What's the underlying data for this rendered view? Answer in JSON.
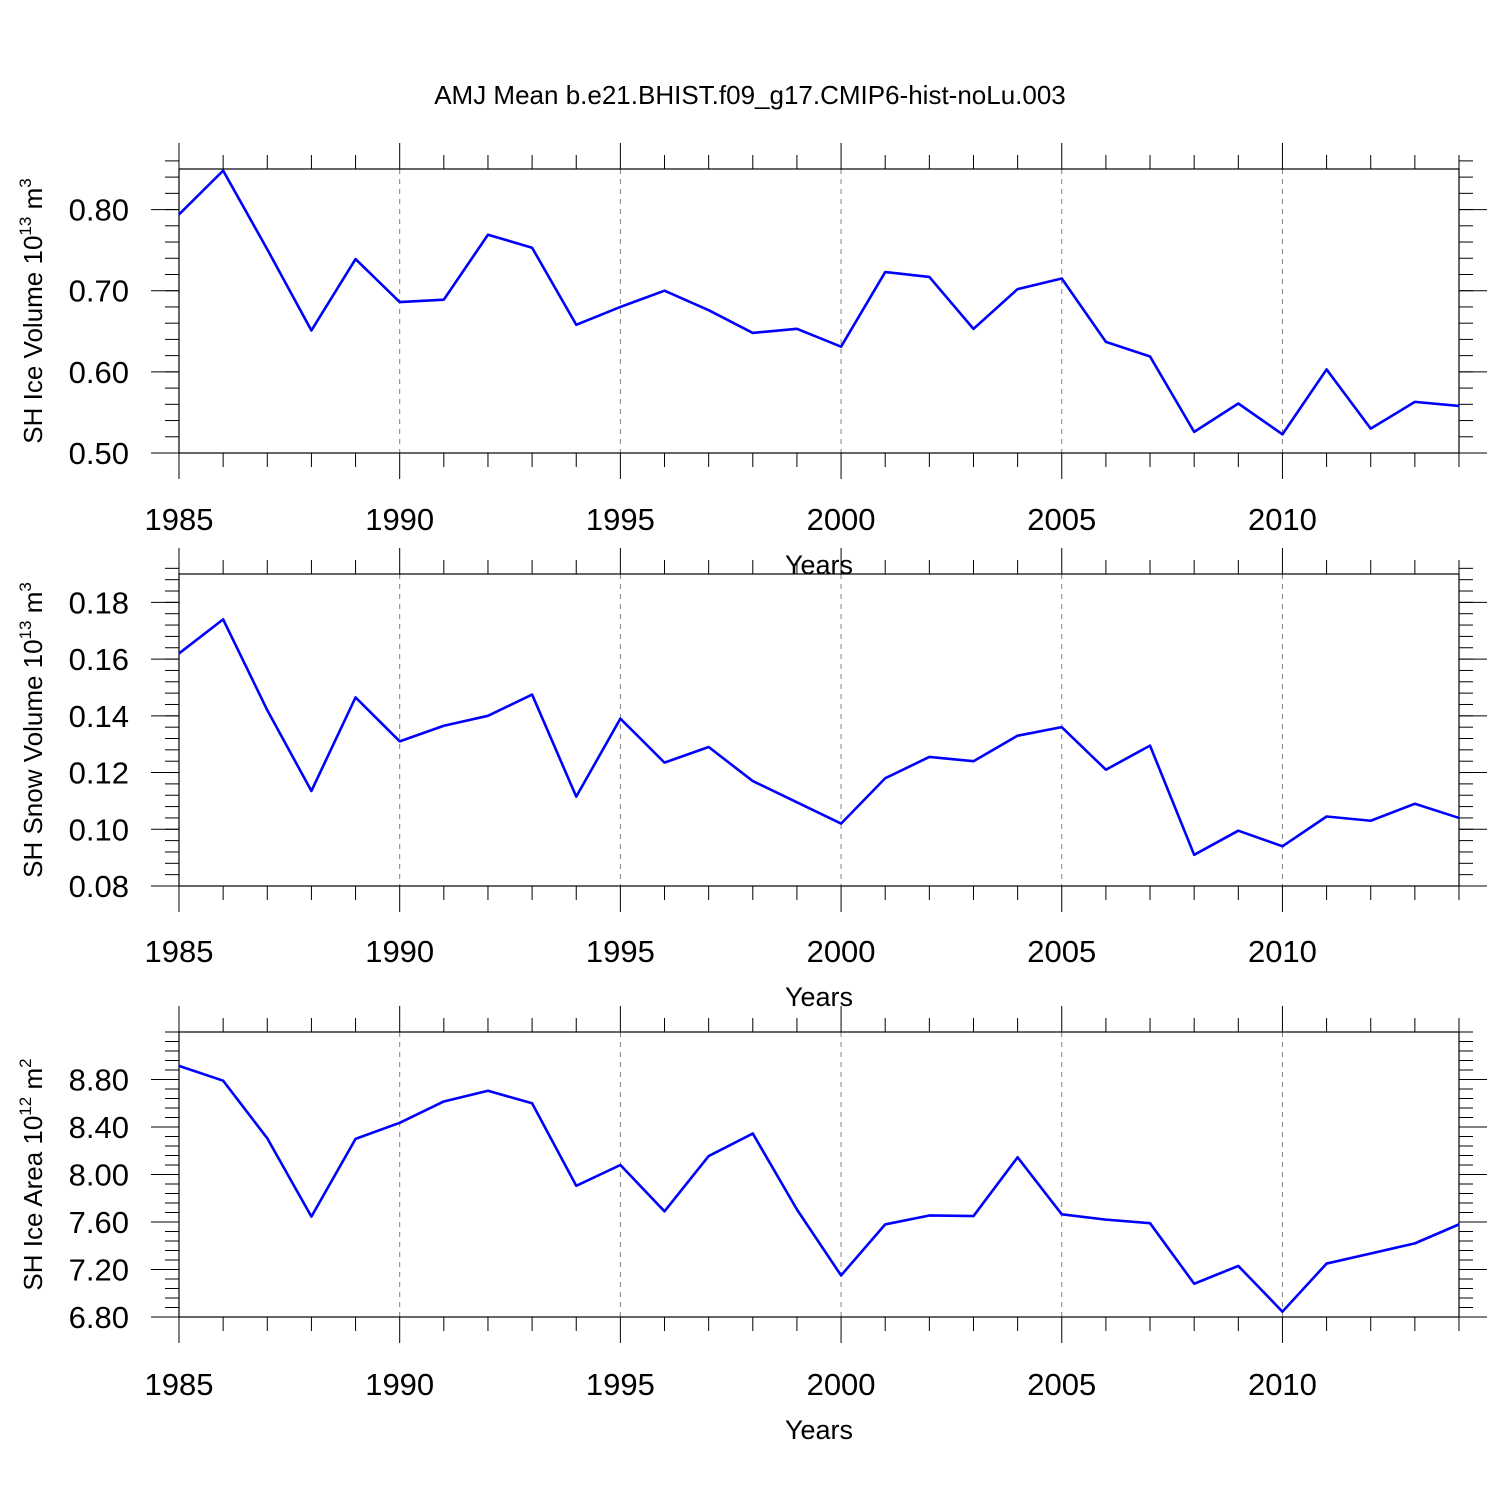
{
  "title": "AMJ Mean b.e21.BHIST.f09_g17.CMIP6-hist-noLu.003",
  "colors": {
    "line": "#0000ff",
    "axis": "#000000",
    "grid": "#808080"
  },
  "chart_data": [
    {
      "type": "line",
      "xlabel": "Years",
      "ylabel": {
        "text": "SH Ice Volume 10",
        "sup1": "13",
        "mid": " m",
        "sup2": "3"
      },
      "xlim": [
        1985,
        2014
      ],
      "ylim": [
        0.5,
        0.85
      ],
      "x_ticks": [
        1985,
        1990,
        1995,
        2000,
        2005,
        2010
      ],
      "x_tick_labels": [
        "1985",
        "1990",
        "1995",
        "2000",
        "2005",
        "2010"
      ],
      "y_ticks": [
        0.5,
        0.6,
        0.7,
        0.8
      ],
      "y_tick_labels": [
        "0.50",
        "0.60",
        "0.70",
        "0.80"
      ],
      "y_minor_step": 0.02,
      "grid": "dashed vertical at major x ticks",
      "x": [
        1985,
        1986,
        1987,
        1988,
        1989,
        1990,
        1991,
        1992,
        1993,
        1994,
        1995,
        1996,
        1997,
        1998,
        1999,
        2000,
        2001,
        2002,
        2003,
        2004,
        2005,
        2006,
        2007,
        2008,
        2009,
        2010,
        2011,
        2012,
        2013,
        2014
      ],
      "series": [
        {
          "values": [
            0.794,
            0.848,
            0.751,
            0.651,
            0.739,
            0.686,
            0.689,
            0.769,
            0.753,
            0.658,
            0.68,
            0.7,
            0.676,
            0.648,
            0.653,
            0.631,
            0.723,
            0.717,
            0.653,
            0.702,
            0.715,
            0.637,
            0.619,
            0.526,
            0.561,
            0.523,
            0.603,
            0.53,
            0.563,
            0.558
          ]
        }
      ]
    },
    {
      "type": "line",
      "xlabel": "Years",
      "ylabel": {
        "text": "SH Snow Volume 10",
        "sup1": "13",
        "mid": " m",
        "sup2": "3"
      },
      "xlim": [
        1985,
        2014
      ],
      "ylim": [
        0.08,
        0.19
      ],
      "x_ticks": [
        1985,
        1990,
        1995,
        2000,
        2005,
        2010
      ],
      "x_tick_labels": [
        "1985",
        "1990",
        "1995",
        "2000",
        "2005",
        "2010"
      ],
      "y_ticks": [
        0.08,
        0.1,
        0.12,
        0.14,
        0.16,
        0.18
      ],
      "y_tick_labels": [
        "0.08",
        "0.10",
        "0.12",
        "0.14",
        "0.16",
        "0.18"
      ],
      "y_minor_step": 0.004,
      "grid": "dashed vertical at major x ticks",
      "x": [
        1985,
        1986,
        1987,
        1988,
        1989,
        1990,
        1991,
        1992,
        1993,
        1994,
        1995,
        1996,
        1997,
        1998,
        1999,
        2000,
        2001,
        2002,
        2003,
        2004,
        2005,
        2006,
        2007,
        2008,
        2009,
        2010,
        2011,
        2012,
        2013,
        2014
      ],
      "series": [
        {
          "values": [
            0.162,
            0.174,
            0.142,
            0.1135,
            0.1465,
            0.131,
            0.1365,
            0.14,
            0.1475,
            0.1115,
            0.139,
            0.1235,
            0.129,
            0.117,
            0.1095,
            0.102,
            0.118,
            0.1255,
            0.124,
            0.133,
            0.136,
            0.121,
            0.1295,
            0.091,
            0.0995,
            0.094,
            0.1045,
            0.103,
            0.109,
            0.104
          ]
        }
      ]
    },
    {
      "type": "line",
      "xlabel": "Years",
      "ylabel": {
        "text": "SH Ice Area 10",
        "sup1": "12",
        "mid": " m",
        "sup2": "2"
      },
      "xlim": [
        1985,
        2014
      ],
      "ylim": [
        6.8,
        9.2
      ],
      "x_ticks": [
        1985,
        1990,
        1995,
        2000,
        2005,
        2010
      ],
      "x_tick_labels": [
        "1985",
        "1990",
        "1995",
        "2000",
        "2005",
        "2010"
      ],
      "y_ticks": [
        6.8,
        7.2,
        7.6,
        8.0,
        8.4,
        8.8
      ],
      "y_tick_labels": [
        "6.80",
        "7.20",
        "7.60",
        "8.00",
        "8.40",
        "8.80"
      ],
      "y_minor_step": 0.08,
      "grid": "dashed vertical at major x ticks",
      "x": [
        1985,
        1986,
        1987,
        1988,
        1989,
        1990,
        1991,
        1992,
        1993,
        1994,
        1995,
        1996,
        1997,
        1998,
        1999,
        2000,
        2001,
        2002,
        2003,
        2004,
        2005,
        2006,
        2007,
        2008,
        2009,
        2010,
        2011,
        2012,
        2013,
        2014
      ],
      "series": [
        {
          "values": [
            8.915,
            8.79,
            8.305,
            7.645,
            8.3,
            8.435,
            8.615,
            8.705,
            8.6,
            7.905,
            8.08,
            7.69,
            8.155,
            8.345,
            7.705,
            7.15,
            7.58,
            7.655,
            7.65,
            8.145,
            7.665,
            7.62,
            7.59,
            7.08,
            7.23,
            6.845,
            7.25,
            7.335,
            7.42,
            7.58
          ]
        }
      ]
    }
  ]
}
